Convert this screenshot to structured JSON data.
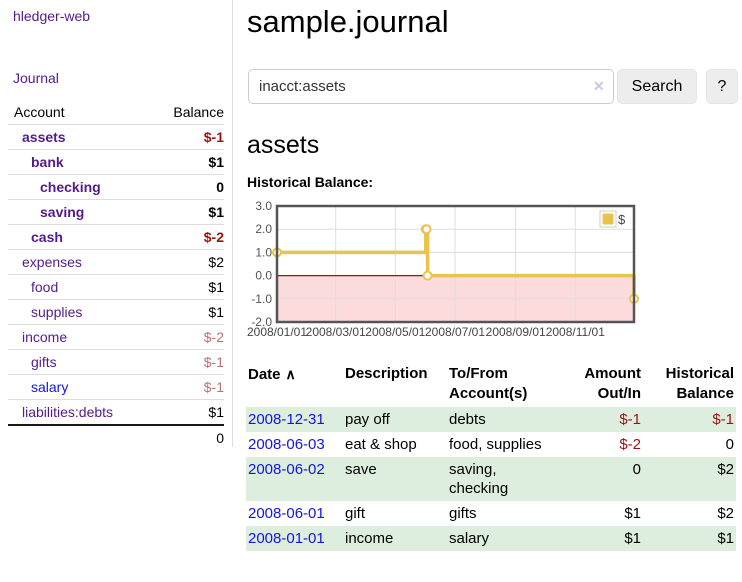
{
  "app": {
    "brand": "hledger-web"
  },
  "colors": {
    "link_purple": "#551a8b",
    "link_blue": "#1414e0",
    "negative_strong": "#9c1212",
    "negative_muted": "#b87272",
    "row_stripe_green": "#deeede",
    "divider": "#dddddd",
    "button_bg": "#ededed",
    "border_gray": "#cccccc"
  },
  "sidebar": {
    "journal_link": "Journal",
    "account_header": "Account",
    "balance_header": "Balance",
    "accounts": [
      {
        "name": "assets",
        "depth": 0,
        "bold": true,
        "link_color": "purple",
        "balance": "$-1",
        "balance_color": "negative-strong"
      },
      {
        "name": "bank",
        "depth": 1,
        "bold": true,
        "link_color": "purple",
        "balance": "$1",
        "balance_color": "normal"
      },
      {
        "name": "checking",
        "depth": 2,
        "bold": true,
        "link_color": "purple",
        "balance": "0",
        "balance_color": "normal"
      },
      {
        "name": "saving",
        "depth": 2,
        "bold": true,
        "link_color": "purple",
        "balance": "$1",
        "balance_color": "normal"
      },
      {
        "name": "cash",
        "depth": 1,
        "bold": true,
        "link_color": "purple",
        "balance": "$-2",
        "balance_color": "negative-strong"
      },
      {
        "name": "expenses",
        "depth": 0,
        "bold": false,
        "link_color": "purple",
        "balance": "$2",
        "balance_color": "normal"
      },
      {
        "name": "food",
        "depth": 1,
        "bold": false,
        "link_color": "purple",
        "balance": "$1",
        "balance_color": "normal"
      },
      {
        "name": "supplies",
        "depth": 1,
        "bold": false,
        "link_color": "purple",
        "balance": "$1",
        "balance_color": "normal"
      },
      {
        "name": "income",
        "depth": 0,
        "bold": false,
        "link_color": "purple",
        "balance": "$-2",
        "balance_color": "negative-muted"
      },
      {
        "name": "gifts",
        "depth": 1,
        "bold": false,
        "link_color": "purple",
        "balance": "$-1",
        "balance_color": "negative-muted"
      },
      {
        "name": "salary",
        "depth": 1,
        "bold": false,
        "link_color": "blue",
        "balance": "$-1",
        "balance_color": "negative-muted"
      },
      {
        "name": "liabilities:debts",
        "depth": 0,
        "bold": false,
        "link_color": "purple",
        "balance": "$1",
        "balance_color": "normal"
      }
    ],
    "total": "0"
  },
  "header": {
    "title": "sample.journal"
  },
  "search": {
    "value": "inacct:assets",
    "clear_icon": "✕",
    "button_label": "Search",
    "help_label": "?"
  },
  "account_page": {
    "title": "assets",
    "chart_label": "Historical Balance:"
  },
  "chart_data": {
    "type": "line",
    "title": "Historical Balance",
    "step": true,
    "series": [
      {
        "name": "$",
        "points": [
          [
            "2008-01-01",
            1
          ],
          [
            "2008-06-01",
            2
          ],
          [
            "2008-06-02",
            2
          ],
          [
            "2008-06-03",
            0
          ],
          [
            "2008-12-31",
            -1
          ]
        ]
      }
    ],
    "x_range": [
      "2008-01-01",
      "2008-12-31"
    ],
    "x_ticks": [
      "2008/01/01",
      "2008/03/01",
      "2008/05/01",
      "2008/07/01",
      "2008/09/01",
      "2008/11/01"
    ],
    "y_ticks": [
      3.0,
      2.0,
      1.0,
      0.0,
      -1.0,
      -2.0
    ],
    "ylim": [
      -2,
      3
    ],
    "grid": true,
    "legend": {
      "label": "$",
      "position": "top-right"
    },
    "line_color": "#e9c34c",
    "negative_region_color": "#fbdbdb",
    "zero_line_color": "#8b1a1a"
  },
  "register": {
    "columns": {
      "date": "Date",
      "sort_icon": "∧",
      "description": "Description",
      "accounts": "To/From\nAccount(s)",
      "amount": "Amount\nOut/In",
      "balance": "Historical\nBalance"
    },
    "rows": [
      {
        "date": "2008-12-31",
        "description": "pay off",
        "accounts": "debts",
        "amount": "$-1",
        "amount_negative": true,
        "balance": "$-1",
        "balance_negative": true
      },
      {
        "date": "2008-06-03",
        "description": "eat & shop",
        "accounts": "food, supplies",
        "amount": "$-2",
        "amount_negative": true,
        "balance": "0",
        "balance_negative": false
      },
      {
        "date": "2008-06-02",
        "description": "save",
        "accounts": "saving,\nchecking",
        "amount": "0",
        "amount_negative": false,
        "balance": "$2",
        "balance_negative": false
      },
      {
        "date": "2008-06-01",
        "description": "gift",
        "accounts": "gifts",
        "amount": "$1",
        "amount_negative": false,
        "balance": "$2",
        "balance_negative": false
      },
      {
        "date": "2008-01-01",
        "description": "income",
        "accounts": "salary",
        "amount": "$1",
        "amount_negative": false,
        "balance": "$1",
        "balance_negative": false
      }
    ]
  }
}
